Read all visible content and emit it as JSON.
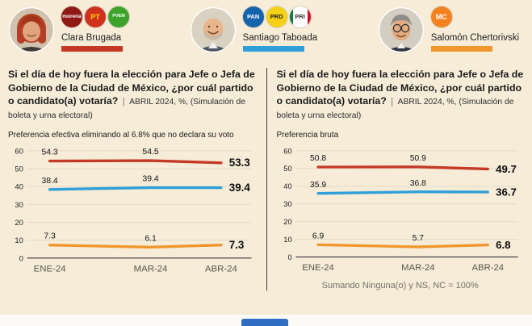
{
  "header": {
    "candidates": [
      {
        "name": "Clara Brugada",
        "color": "#c43a26",
        "parties": [
          {
            "label": "morena",
            "bg": "#8f1a15",
            "fg": "#ffffff"
          },
          {
            "label": "PT",
            "bg": "#d0311e",
            "fg": "#ffd200"
          },
          {
            "label": "PVEM",
            "bg": "#3ea32b",
            "fg": "#ffffff"
          }
        ]
      },
      {
        "name": "Santiago Taboada",
        "color": "#2e9fd8",
        "parties": [
          {
            "label": "PAN",
            "bg": "#1464ab",
            "fg": "#ffffff"
          },
          {
            "label": "PRD",
            "bg": "#f7d117",
            "fg": "#222222"
          },
          {
            "label": "PRI",
            "bg": "#ffffff",
            "fg": "#333333"
          }
        ]
      },
      {
        "name": "Salomón Chertorivski",
        "color": "#f0962d",
        "parties": [
          {
            "label": "MC",
            "bg": "#f5821f",
            "fg": "#ffffff"
          }
        ]
      }
    ]
  },
  "panels": [
    {
      "question": "Si el día de hoy fuera la elección para Jefe o Jefa de Gobierno de la Ciudad de México, ¿por cuál partido o candidato(a) votaría?",
      "separator": "|",
      "qualifier": "ABRIL 2024, %, (Simulación de boleta y urna electoral)",
      "subtitle": "Preferencia efectiva eliminando al 6.8% que no declara su voto"
    },
    {
      "question": "Si el día de hoy fuera la elección para Jefe o Jefa de Gobierno de la Ciudad de México, ¿por cuál partido o candidato(a) votaría?",
      "separator": "|",
      "qualifier": "ABRIL 2024, %, (Simulación de boleta y urna electoral)",
      "subtitle": "Preferencia bruta",
      "footnote": "Sumando Ninguna(o) y NS, NC = 100%"
    }
  ],
  "chart_data": [
    {
      "type": "line",
      "title": "Preferencia efectiva eliminando al 6.8% que no declara su voto",
      "categories": [
        "ENE-24",
        "MAR-24",
        "ABR-24"
      ],
      "series": [
        {
          "name": "Clara Brugada",
          "color": "#c43a26",
          "values": [
            54.3,
            54.5,
            53.3
          ]
        },
        {
          "name": "Santiago Taboada",
          "color": "#2e9fd8",
          "values": [
            38.4,
            39.4,
            39.4
          ]
        },
        {
          "name": "Salomón Chertorivski",
          "color": "#f0962d",
          "values": [
            7.3,
            6.1,
            7.3
          ]
        }
      ],
      "xlabel": "",
      "ylabel": "",
      "ylim": [
        0,
        60
      ],
      "yticks": [
        0,
        10,
        20,
        30,
        40,
        50,
        60
      ],
      "grid": true,
      "legend_position": "none"
    },
    {
      "type": "line",
      "title": "Preferencia bruta",
      "categories": [
        "ENE-24",
        "MAR-24",
        "ABR-24"
      ],
      "series": [
        {
          "name": "Clara Brugada",
          "color": "#c43a26",
          "values": [
            50.8,
            50.9,
            49.7
          ]
        },
        {
          "name": "Santiago Taboada",
          "color": "#2e9fd8",
          "values": [
            35.9,
            36.8,
            36.7
          ]
        },
        {
          "name": "Salomón Chertorivski",
          "color": "#f0962d",
          "values": [
            6.9,
            5.7,
            6.8
          ]
        }
      ],
      "xlabel": "",
      "ylabel": "",
      "ylim": [
        0,
        60
      ],
      "yticks": [
        0,
        10,
        20,
        30,
        40,
        50,
        60
      ],
      "grid": true,
      "legend_position": "none",
      "footnote": "Sumando Ninguna(o) y NS, NC = 100%"
    }
  ],
  "colors": {
    "background": "#f6ecd8",
    "red": "#c43a26",
    "blue": "#2e9fd8",
    "orange": "#f0962d"
  }
}
